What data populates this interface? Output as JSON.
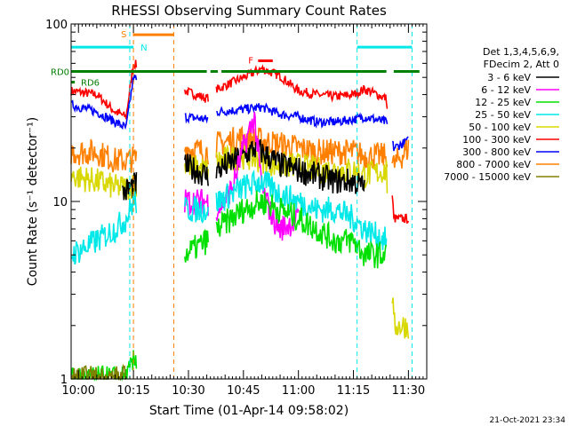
{
  "chart_data": {
    "type": "line",
    "title": "RHESSI Observing Summary Count Rates",
    "xlabel": "Start Time (01-Apr-14 09:58:02)",
    "ylabel": "Count Rate (s⁻¹ detector⁻¹)",
    "y_scale": "log",
    "ylim": [
      1,
      100
    ],
    "xlim": [
      "09:58",
      "11:35"
    ],
    "x_ticks": [
      "10:00",
      "10:15",
      "10:30",
      "10:45",
      "11:00",
      "11:15",
      "11:30"
    ],
    "y_ticks": [
      "1",
      "10",
      "100"
    ],
    "timestamp": "21-Oct-2021 23:34",
    "legend": {
      "position": "right",
      "header": [
        "Det 1,3,4,5,6,9,",
        "FDecim 2, Att 0"
      ],
      "entries": [
        {
          "label": "3 - 6 keV",
          "color": "#000000"
        },
        {
          "label": "6 - 12 keV",
          "color": "#ff00ff"
        },
        {
          "label": "12 - 25 keV",
          "color": "#00e000"
        },
        {
          "label": "25 - 50 keV",
          "color": "#00e8e8"
        },
        {
          "label": "50 - 100 keV",
          "color": "#d8d800"
        },
        {
          "label": "100 - 300 keV",
          "color": "#ff0000"
        },
        {
          "label": "300 - 800 keV",
          "color": "#0000ff"
        },
        {
          "label": "800 - 7000 keV",
          "color": "#ff8000"
        },
        {
          "label": "7000 - 15000 keV",
          "color": "#808000"
        }
      ]
    },
    "flags": {
      "saa": {
        "label": "S",
        "color": "#ff8000",
        "start": "10:15",
        "end": "10:26",
        "level": 87
      },
      "night": [
        {
          "label": "N",
          "color": "#00e8e8",
          "start": "09:58",
          "end": "10:15",
          "level": 74
        },
        {
          "label": "",
          "color": "#00e8e8",
          "start": "11:16",
          "end": "11:31",
          "level": 74
        }
      ],
      "flare": {
        "label": "F",
        "color": "#ff0000",
        "start": "10:49",
        "end": "10:53",
        "level": 62
      },
      "rd0": {
        "label": "RD0",
        "color": "#008000",
        "level": 54,
        "spans": [
          [
            "09:58",
            "10:35"
          ],
          [
            "10:36",
            "10:38"
          ],
          [
            "10:39",
            "11:24"
          ],
          [
            "11:26",
            "11:33"
          ]
        ]
      },
      "rd6": {
        "label": "RD6",
        "color": "#008000",
        "level": 47,
        "spans": [
          [
            "09:58",
            "09:59"
          ]
        ]
      }
    },
    "markers": [
      {
        "time": "10:14",
        "color": "#00e8e8"
      },
      {
        "time": "10:15",
        "color": "#ff8000"
      },
      {
        "time": "10:26",
        "color": "#ff8000"
      },
      {
        "time": "11:16",
        "color": "#00e8e8"
      },
      {
        "time": "11:31",
        "color": "#00e8e8"
      }
    ],
    "series": [
      {
        "name": "100 - 300 keV",
        "color": "#ff0000",
        "x": [
          "09:58",
          "10:05",
          "10:10",
          "10:13",
          "10:15",
          "10:29",
          "10:35",
          "10:38",
          "10:45",
          "10:50",
          "10:55",
          "11:00",
          "11:05",
          "11:10",
          "11:15",
          "11:18",
          "11:24",
          "11:26",
          "11:30"
        ],
        "y": [
          42,
          40,
          32,
          30,
          60,
          42,
          38,
          43,
          50,
          56,
          51,
          42,
          40,
          39,
          40,
          43,
          38,
          8,
          8
        ]
      },
      {
        "name": "300 - 800 keV",
        "color": "#0000ff",
        "x": [
          "09:58",
          "10:05",
          "10:10",
          "10:13",
          "10:15",
          "10:29",
          "10:35",
          "10:38",
          "10:45",
          "10:50",
          "10:55",
          "11:00",
          "11:05",
          "11:10",
          "11:15",
          "11:18",
          "11:24",
          "11:26",
          "11:30"
        ],
        "y": [
          35,
          32,
          28,
          26,
          50,
          30,
          29,
          32,
          33,
          34,
          31,
          30,
          28,
          28,
          29,
          30,
          28,
          20,
          22
        ]
      },
      {
        "name": "800 - 7000 keV",
        "color": "#ff8000",
        "x": [
          "09:58",
          "10:05",
          "10:10",
          "10:13",
          "10:29",
          "10:35",
          "10:38",
          "10:45",
          "10:50",
          "10:55",
          "11:00",
          "11:05",
          "11:10",
          "11:15",
          "11:18",
          "11:24",
          "11:26",
          "11:30"
        ],
        "y": [
          19,
          19,
          17,
          17,
          20,
          19,
          21,
          23,
          22,
          21,
          20,
          19,
          19,
          19,
          18,
          18,
          16,
          20
        ]
      },
      {
        "name": "50 - 100 keV",
        "color": "#d8d800",
        "x": [
          "09:58",
          "10:05",
          "10:10",
          "10:13",
          "10:29",
          "10:35",
          "10:38",
          "10:45",
          "10:50",
          "10:55",
          "11:00",
          "11:05",
          "11:10",
          "11:15",
          "11:18",
          "11:24",
          "11:26",
          "11:30"
        ],
        "y": [
          14,
          13,
          12,
          12,
          16,
          15,
          17,
          18,
          17,
          16,
          16,
          15,
          15,
          15,
          14,
          15,
          2,
          2
        ]
      },
      {
        "name": "3 - 6 keV",
        "color": "#000000",
        "x": [
          "10:12",
          "10:14",
          "10:29",
          "10:35",
          "10:38",
          "10:45",
          "10:48",
          "10:50",
          "10:55",
          "11:00",
          "11:05",
          "11:10",
          "11:15",
          "11:18"
        ],
        "y": [
          11,
          12,
          16,
          14,
          15,
          18,
          20,
          19,
          16,
          15,
          14,
          13,
          13,
          12
        ]
      },
      {
        "name": "6 - 12 keV",
        "color": "#ff00ff",
        "x": [
          "10:29",
          "10:35",
          "10:38",
          "10:42",
          "10:45",
          "10:48",
          "10:50",
          "10:53",
          "10:55",
          "11:00"
        ],
        "y": [
          10,
          10,
          9,
          12,
          20,
          30,
          12,
          8,
          7,
          8
        ]
      },
      {
        "name": "25 - 50 keV",
        "color": "#00e8e8",
        "x": [
          "09:58",
          "10:05",
          "10:10",
          "10:13",
          "10:15",
          "10:29",
          "10:35",
          "10:38",
          "10:45",
          "10:50",
          "10:55",
          "11:00",
          "11:05",
          "11:10",
          "11:15",
          "11:18",
          "11:24"
        ],
        "y": [
          5,
          6,
          7,
          8,
          10,
          9,
          9,
          10,
          12,
          13,
          11,
          10,
          9,
          9,
          8,
          7,
          6
        ]
      },
      {
        "name": "12 - 25 keV",
        "color": "#00e000",
        "x": [
          "09:58",
          "10:05",
          "10:10",
          "10:13",
          "10:29",
          "10:35",
          "10:38",
          "10:45",
          "10:50",
          "10:55",
          "11:00",
          "11:05",
          "11:10",
          "11:15",
          "11:18",
          "11:24"
        ],
        "y": [
          1,
          1,
          1,
          1,
          5,
          6,
          7,
          9,
          10,
          9,
          8,
          7,
          6,
          6,
          5,
          5
        ]
      },
      {
        "name": "7000 - 15000 keV",
        "color": "#808000",
        "x": [
          "09:58",
          "10:00",
          "10:05",
          "10:10",
          "10:13"
        ],
        "y": [
          1,
          1,
          1,
          1,
          1
        ]
      }
    ]
  }
}
